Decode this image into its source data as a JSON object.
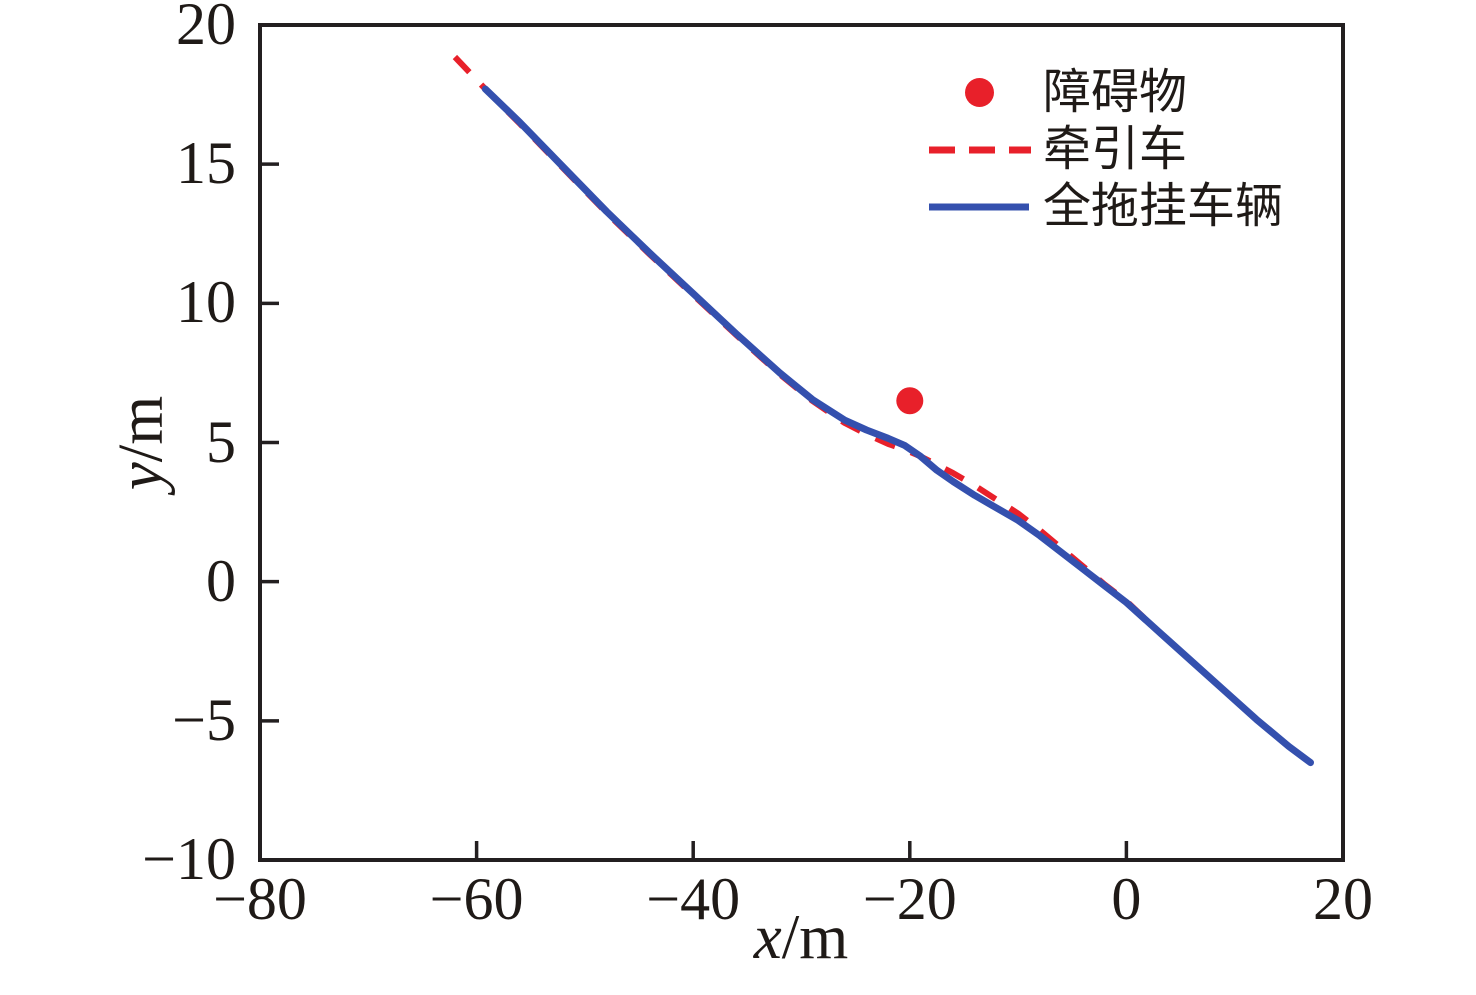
{
  "figure": {
    "background": "#ffffff",
    "text_color": "#1f1a17"
  },
  "axes": {
    "xlabel_var": "x",
    "xlabel_unit": "/m",
    "ylabel_var": "y",
    "ylabel_unit": "/m",
    "axis_color": "#231f20",
    "x_ticks": [
      {
        "v": -80,
        "label": "−80"
      },
      {
        "v": -60,
        "label": "−60"
      },
      {
        "v": -40,
        "label": "−40"
      },
      {
        "v": -20,
        "label": "−20"
      },
      {
        "v": 0,
        "label": "0"
      },
      {
        "v": 20,
        "label": "20"
      }
    ],
    "y_ticks": [
      {
        "v": 20,
        "label": "20"
      },
      {
        "v": 15,
        "label": "15"
      },
      {
        "v": 10,
        "label": "10"
      },
      {
        "v": 5,
        "label": "5"
      },
      {
        "v": 0,
        "label": "0"
      },
      {
        "v": -5,
        "label": "−5"
      },
      {
        "v": -10,
        "label": "−10"
      }
    ]
  },
  "chart_data": {
    "type": "line",
    "title": "",
    "xlabel": "x/m",
    "ylabel": "y/m",
    "xlim": [
      -80,
      20
    ],
    "ylim": [
      -10,
      20
    ],
    "grid": false,
    "legend_position": "upper right",
    "obstacle": {
      "label": "障碍物",
      "x": -20,
      "y": 6.5,
      "color": "#e8202a",
      "marker": "dot"
    },
    "series": [
      {
        "name": "牵引车",
        "style": "dashed",
        "color": "#e8202a",
        "points": [
          [
            -62,
            18.85
          ],
          [
            -59.2,
            17.7
          ],
          [
            -56,
            16.45
          ],
          [
            -52,
            14.85
          ],
          [
            -48,
            13.25
          ],
          [
            -44,
            11.75
          ],
          [
            -40,
            10.3
          ],
          [
            -36,
            8.85
          ],
          [
            -32,
            7.45
          ],
          [
            -29,
            6.5
          ],
          [
            -26,
            5.7
          ],
          [
            -24,
            5.3
          ],
          [
            -22,
            4.95
          ],
          [
            -20.5,
            4.75
          ],
          [
            -19,
            4.5
          ],
          [
            -17.5,
            4.2
          ],
          [
            -16,
            3.9
          ],
          [
            -14,
            3.45
          ],
          [
            -12,
            2.95
          ],
          [
            -10,
            2.45
          ],
          [
            -8,
            1.85
          ],
          [
            -6,
            1.2
          ],
          [
            -4,
            0.55
          ],
          [
            -2,
            -0.1
          ],
          [
            0,
            -0.7
          ],
          [
            3,
            -1.8
          ],
          [
            6,
            -2.85
          ],
          [
            9,
            -3.9
          ],
          [
            12,
            -4.95
          ],
          [
            15,
            -5.92
          ],
          [
            17,
            -6.5
          ]
        ]
      },
      {
        "name": "全拖挂车辆",
        "style": "solid",
        "color": "#3450ae",
        "points": [
          [
            -59.2,
            17.7
          ],
          [
            -56,
            16.5
          ],
          [
            -52,
            14.9
          ],
          [
            -48,
            13.3
          ],
          [
            -44,
            11.8
          ],
          [
            -40,
            10.35
          ],
          [
            -36,
            8.9
          ],
          [
            -32,
            7.5
          ],
          [
            -29,
            6.55
          ],
          [
            -26,
            5.8
          ],
          [
            -24,
            5.45
          ],
          [
            -22,
            5.15
          ],
          [
            -20.5,
            4.9
          ],
          [
            -19,
            4.5
          ],
          [
            -17.5,
            4.0
          ],
          [
            -16,
            3.6
          ],
          [
            -14,
            3.1
          ],
          [
            -12,
            2.65
          ],
          [
            -10,
            2.2
          ],
          [
            -8,
            1.65
          ],
          [
            -6,
            1.05
          ],
          [
            -4,
            0.45
          ],
          [
            -2,
            -0.15
          ],
          [
            0,
            -0.75
          ],
          [
            3,
            -1.8
          ],
          [
            6,
            -2.85
          ],
          [
            9,
            -3.9
          ],
          [
            12,
            -4.95
          ],
          [
            15,
            -5.92
          ],
          [
            17,
            -6.5
          ]
        ]
      }
    ]
  }
}
